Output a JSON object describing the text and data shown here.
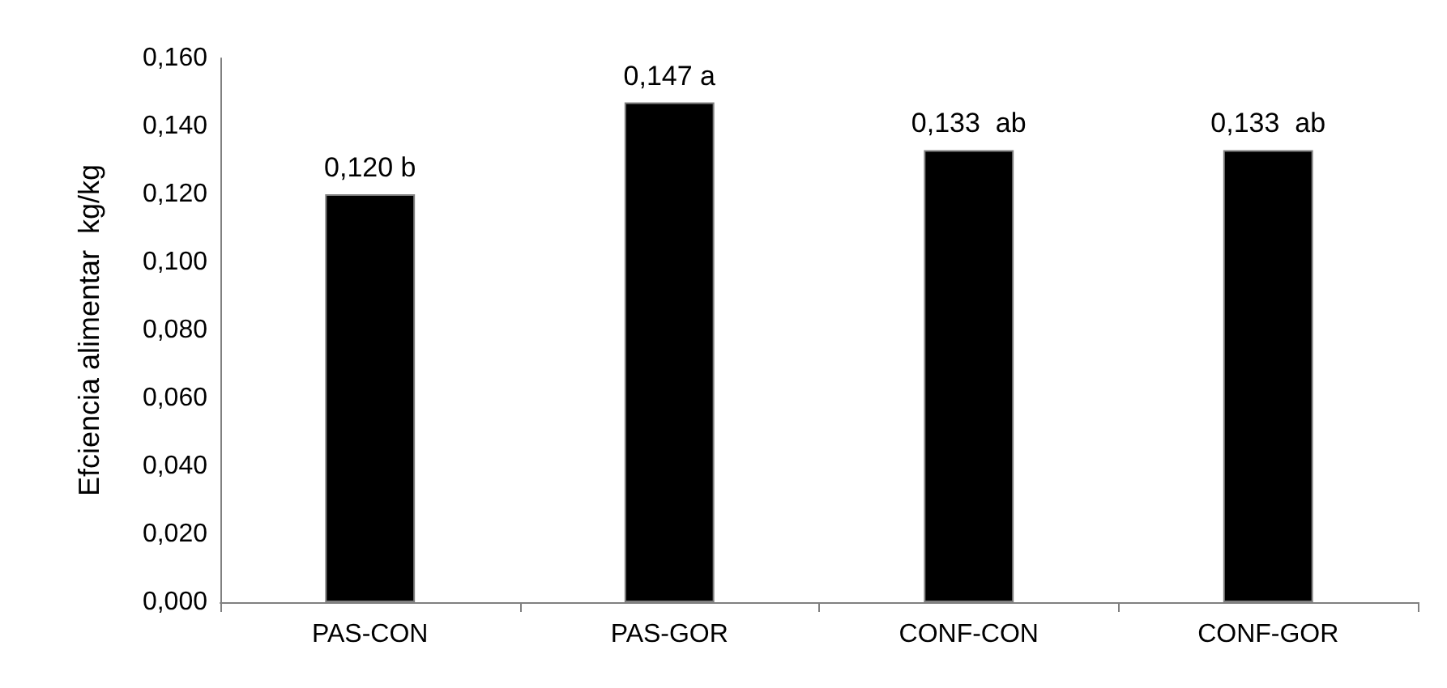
{
  "chart_data": {
    "type": "bar",
    "ylabel": "Efciencia alimentar  kg/kg",
    "categories": [
      "PAS-CON",
      "PAS-GOR",
      "CONF-CON",
      "CONF-GOR"
    ],
    "values": [
      0.12,
      0.147,
      0.133,
      0.133
    ],
    "value_labels": [
      "0,120 b",
      "0,147 a",
      "0,133  ab",
      "0,133  ab"
    ],
    "color": "#000000",
    "ylim": [
      0,
      0.16
    ],
    "yticks": [
      {
        "value": 0,
        "label": "0,000"
      },
      {
        "value": 0.02,
        "label": "0,020"
      },
      {
        "value": 0.04,
        "label": "0,040"
      },
      {
        "value": 0.06,
        "label": "0,060"
      },
      {
        "value": 0.08,
        "label": "0,080"
      },
      {
        "value": 0.1,
        "label": "0,100"
      },
      {
        "value": 0.12,
        "label": "0,120"
      },
      {
        "value": 0.14,
        "label": "0,140"
      },
      {
        "value": 0.16,
        "label": "0,160"
      }
    ],
    "grid": false
  }
}
